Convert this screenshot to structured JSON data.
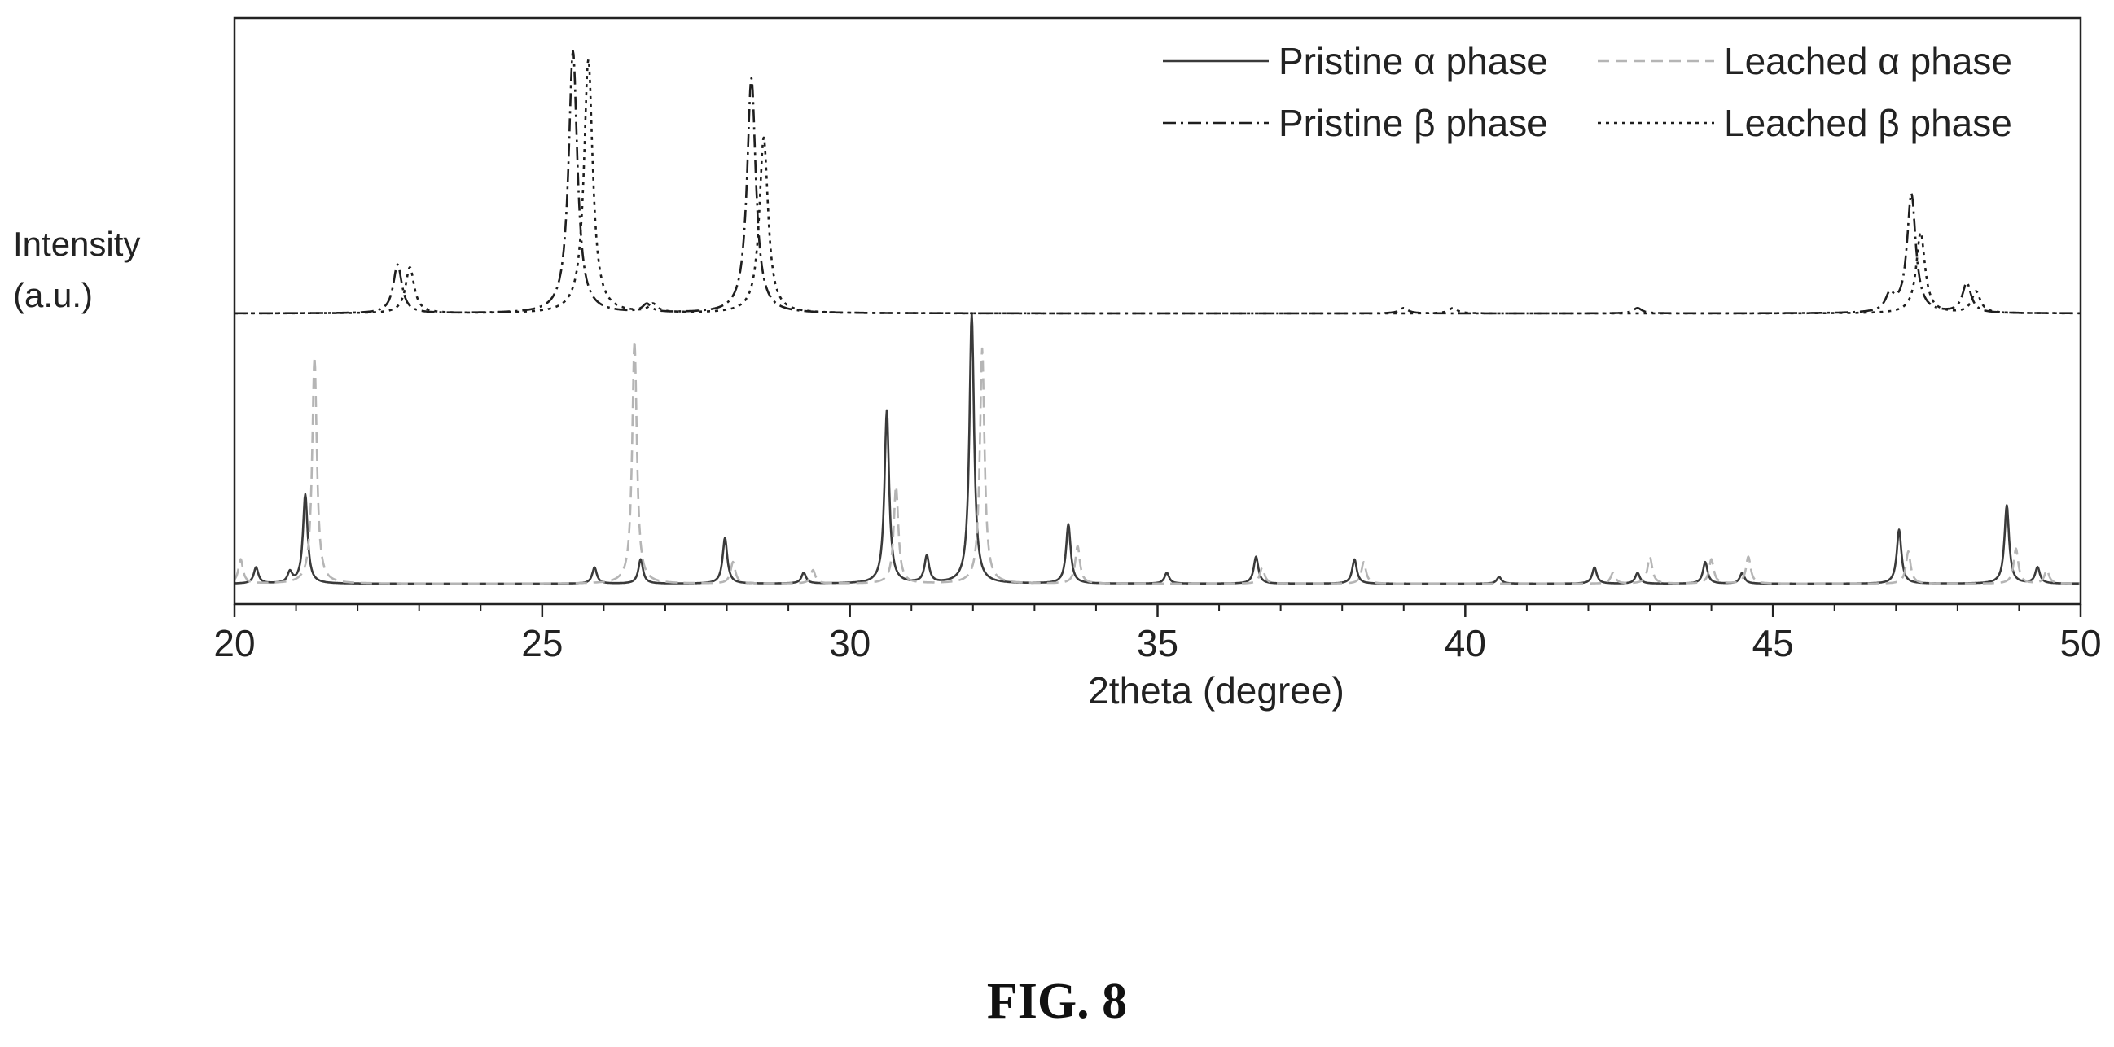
{
  "chart_data": {
    "type": "line",
    "title": "",
    "xlabel": "2theta (degree)",
    "ylabel": [
      "Intensity",
      "(a.u.)"
    ],
    "xlim": [
      20,
      50
    ],
    "xticks": [
      20,
      25,
      30,
      35,
      40,
      45,
      50
    ],
    "legend_position": "top-right",
    "y_units": "relative intensity (a.u.), patterns vertically offset",
    "series": [
      {
        "name": "Pristine α phase",
        "line_style": "solid",
        "color": "#3a3a3a",
        "baseline": 0,
        "peaks": [
          [
            20.35,
            0.06
          ],
          [
            20.9,
            0.04
          ],
          [
            21.15,
            0.33
          ],
          [
            25.85,
            0.06
          ],
          [
            26.6,
            0.09
          ],
          [
            27.97,
            0.17
          ],
          [
            29.25,
            0.04
          ],
          [
            30.6,
            0.64
          ],
          [
            31.25,
            0.1
          ],
          [
            31.98,
            1.0
          ],
          [
            33.55,
            0.22
          ],
          [
            35.15,
            0.04
          ],
          [
            36.6,
            0.1
          ],
          [
            38.2,
            0.09
          ],
          [
            40.55,
            0.025
          ],
          [
            42.1,
            0.06
          ],
          [
            42.8,
            0.04
          ],
          [
            43.9,
            0.08
          ],
          [
            44.5,
            0.04
          ],
          [
            47.05,
            0.2
          ],
          [
            48.8,
            0.29
          ],
          [
            49.3,
            0.06
          ]
        ]
      },
      {
        "name": "Leached α phase",
        "line_style": "dashed",
        "color": "#b5b5b5",
        "baseline": 0,
        "peaks": [
          [
            20.1,
            0.09
          ],
          [
            21.3,
            0.84
          ],
          [
            26.5,
            0.9
          ],
          [
            28.1,
            0.08
          ],
          [
            29.4,
            0.05
          ],
          [
            30.75,
            0.36
          ],
          [
            32.15,
            0.87
          ],
          [
            33.7,
            0.14
          ],
          [
            36.7,
            0.06
          ],
          [
            38.35,
            0.08
          ],
          [
            42.4,
            0.04
          ],
          [
            43.0,
            0.1
          ],
          [
            44.0,
            0.09
          ],
          [
            44.6,
            0.1
          ],
          [
            47.2,
            0.12
          ],
          [
            48.95,
            0.13
          ],
          [
            49.45,
            0.05
          ]
        ]
      },
      {
        "name": "Pristine β phase",
        "line_style": "dash-dot",
        "color": "#1e1e1e",
        "baseline": 1.0,
        "peaks": [
          [
            22.65,
            0.18
          ],
          [
            25.5,
            0.97
          ],
          [
            26.7,
            0.03
          ],
          [
            28.4,
            0.87
          ],
          [
            39.0,
            0.02
          ],
          [
            42.8,
            0.02
          ],
          [
            46.9,
            0.06
          ],
          [
            47.25,
            0.44
          ],
          [
            48.15,
            0.11
          ]
        ]
      },
      {
        "name": "Leached β phase",
        "line_style": "dotted",
        "color": "#1e1e1e",
        "baseline": 1.0,
        "peaks": [
          [
            22.85,
            0.17
          ],
          [
            25.75,
            0.94
          ],
          [
            26.8,
            0.03
          ],
          [
            28.6,
            0.65
          ],
          [
            39.8,
            0.02
          ],
          [
            47.4,
            0.3
          ],
          [
            48.3,
            0.08
          ]
        ]
      }
    ]
  },
  "figure": {
    "caption": "FIG. 8"
  }
}
